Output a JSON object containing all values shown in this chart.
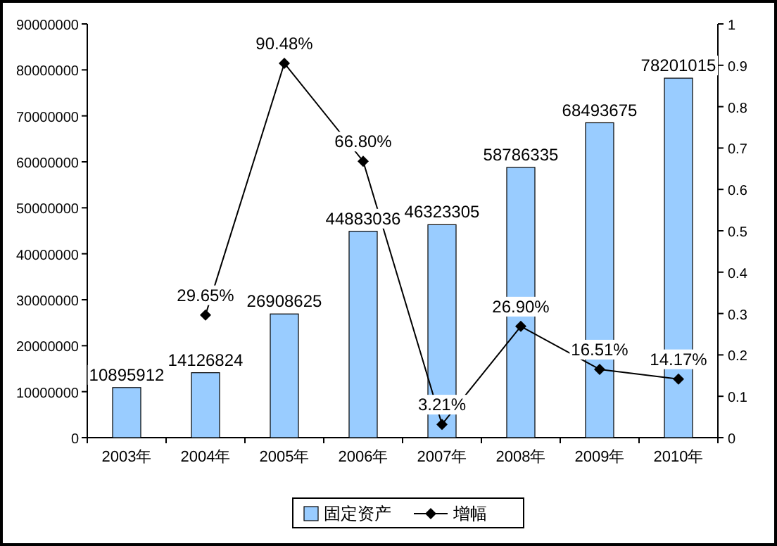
{
  "chart_data": {
    "type": "bar",
    "categories": [
      "2003年",
      "2004年",
      "2005年",
      "2006年",
      "2007年",
      "2008年",
      "2009年",
      "2010年"
    ],
    "series": [
      {
        "name": "固定资产",
        "color": "#99ccff",
        "values": [
          10895912,
          14126824,
          26908625,
          44883036,
          46323305,
          58786335,
          68493675,
          78201015
        ],
        "value_labels": [
          "10895912",
          "14126824",
          "26908625",
          "44883036",
          "46323305",
          "58786335",
          "68493675",
          "78201015"
        ]
      },
      {
        "name": "增幅",
        "type": "line",
        "axis": "y2",
        "color": "#000000",
        "marker": "diamond",
        "values": [
          null,
          0.2965,
          0.9048,
          0.668,
          0.0321,
          0.269,
          0.1651,
          0.1417
        ],
        "value_labels": [
          null,
          "29.65%",
          "90.48%",
          "66.80%",
          "3.21%",
          "26.90%",
          "16.51%",
          "14.17%"
        ]
      }
    ],
    "ylim": [
      0,
      90000000
    ],
    "yticks": [
      0,
      10000000,
      20000000,
      30000000,
      40000000,
      50000000,
      60000000,
      70000000,
      80000000,
      90000000
    ],
    "y2lim": [
      0,
      1
    ],
    "y2ticks": [
      0,
      0.1,
      0.2,
      0.3,
      0.4,
      0.5,
      0.6,
      0.7,
      0.8,
      0.9,
      1
    ],
    "legend": "bottom",
    "grid": false
  }
}
